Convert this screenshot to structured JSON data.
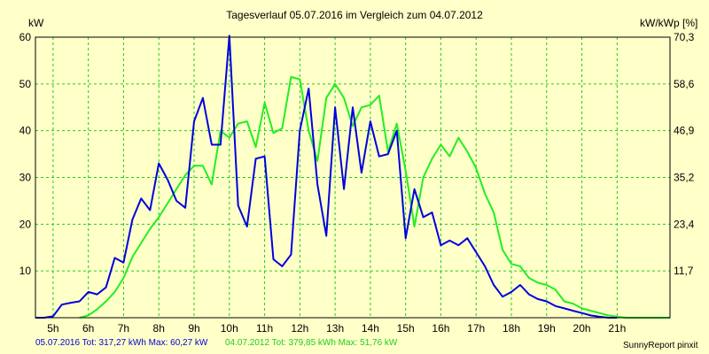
{
  "title": "Tagesverlauf 05.07.2016 im Vergleich zum 04.07.2012",
  "footer": {
    "series1_text": "05.07.2016 Tot: 317,27 kWh Max: 60,27 kW",
    "series2_text": "04.07.2012 Tot: 379,85 kWh Max: 51,76 kW",
    "brand": "SunnyReport pinxit"
  },
  "chart_data": {
    "type": "line",
    "ylabel": "kW",
    "y2label": "kW/kWp [%]",
    "xlim": [
      4.5,
      22.5
    ],
    "ylim": [
      0,
      60
    ],
    "y_ticks": [
      10,
      20,
      30,
      40,
      50,
      60
    ],
    "y2_ticks": [
      "11,7",
      "23,4",
      "35,2",
      "46,9",
      "58,6",
      "70,3"
    ],
    "x_ticks": [
      5,
      6,
      7,
      8,
      9,
      10,
      11,
      12,
      13,
      14,
      15,
      16,
      17,
      18,
      19,
      20,
      21
    ],
    "x_tick_labels": [
      "5h",
      "6h",
      "7h",
      "8h",
      "9h",
      "10h",
      "11h",
      "12h",
      "13h",
      "14h",
      "15h",
      "16h",
      "17h",
      "18h",
      "19h",
      "20h",
      "21h"
    ],
    "grid": true,
    "background": "#ffffc8",
    "grid_color": "#22cc22",
    "series": [
      {
        "name": "05.07.2016",
        "color": "#0000dd",
        "x": [
          4.5,
          4.75,
          5,
          5.25,
          5.5,
          5.75,
          6,
          6.25,
          6.5,
          6.75,
          7,
          7.25,
          7.5,
          7.75,
          8,
          8.25,
          8.5,
          8.75,
          9,
          9.25,
          9.5,
          9.75,
          10,
          10.25,
          10.5,
          10.75,
          11,
          11.25,
          11.5,
          11.75,
          12,
          12.25,
          12.5,
          12.75,
          13,
          13.25,
          13.5,
          13.75,
          14,
          14.25,
          14.5,
          14.75,
          15,
          15.25,
          15.5,
          15.75,
          16,
          16.25,
          16.5,
          16.75,
          17,
          17.25,
          17.5,
          17.75,
          18,
          18.25,
          18.5,
          18.75,
          19,
          19.25,
          19.5,
          19.75,
          20,
          20.25,
          20.5,
          20.75,
          21
        ],
        "y": [
          0,
          0,
          0.3,
          2.8,
          3.2,
          3.5,
          5.5,
          5,
          6.5,
          12.8,
          11.8,
          21,
          25.5,
          23,
          33,
          29.5,
          25,
          23.5,
          42,
          47,
          37,
          37,
          60.3,
          24,
          19.5,
          34,
          34.5,
          12.5,
          11,
          13.5,
          40,
          49,
          28.5,
          17.5,
          45,
          27.5,
          45,
          31,
          42,
          34.5,
          35,
          40,
          17,
          27.5,
          21.5,
          22.5,
          15.5,
          16.5,
          15.5,
          17,
          14,
          11,
          7,
          4.5,
          5.5,
          7,
          5,
          4,
          3.5,
          2.5,
          2,
          1.5,
          1,
          0.5,
          0.2,
          0,
          0
        ]
      },
      {
        "name": "04.07.2012",
        "color": "#22ee22",
        "x": [
          5.75,
          6,
          6.25,
          6.5,
          6.75,
          7,
          7.25,
          7.5,
          7.75,
          8,
          8.25,
          8.5,
          8.75,
          9,
          9.25,
          9.5,
          9.75,
          10,
          10.25,
          10.5,
          10.75,
          11,
          11.25,
          11.5,
          11.75,
          12,
          12.25,
          12.5,
          12.75,
          13,
          13.25,
          13.5,
          13.75,
          14,
          14.25,
          14.5,
          14.75,
          15,
          15.25,
          15.5,
          15.75,
          16,
          16.25,
          16.5,
          16.75,
          17,
          17.25,
          17.5,
          17.75,
          18,
          18.25,
          18.5,
          18.75,
          19,
          19.25,
          19.5,
          19.75,
          20,
          20.25,
          20.5,
          20.75,
          21,
          21.25,
          21.5,
          21.75,
          22,
          22.25,
          22.5
        ],
        "y": [
          0,
          0.5,
          1.8,
          3.5,
          5.5,
          8.5,
          13,
          16,
          19,
          21.5,
          24.5,
          27.5,
          30.5,
          32.5,
          32.5,
          28.5,
          40,
          38.5,
          41.5,
          42,
          36.5,
          46,
          39.5,
          40.5,
          51.5,
          51,
          40,
          33.5,
          47,
          50,
          47,
          41,
          45,
          45.5,
          47.5,
          35.5,
          41.5,
          31.5,
          19.5,
          30,
          34,
          37,
          34.5,
          38.5,
          35.5,
          32,
          26.5,
          22.5,
          14.5,
          11.5,
          11,
          8.5,
          7.5,
          7,
          6,
          3.5,
          3,
          2,
          1.5,
          1,
          0.5,
          0.2,
          0,
          0,
          0,
          0,
          0,
          0
        ]
      }
    ]
  }
}
